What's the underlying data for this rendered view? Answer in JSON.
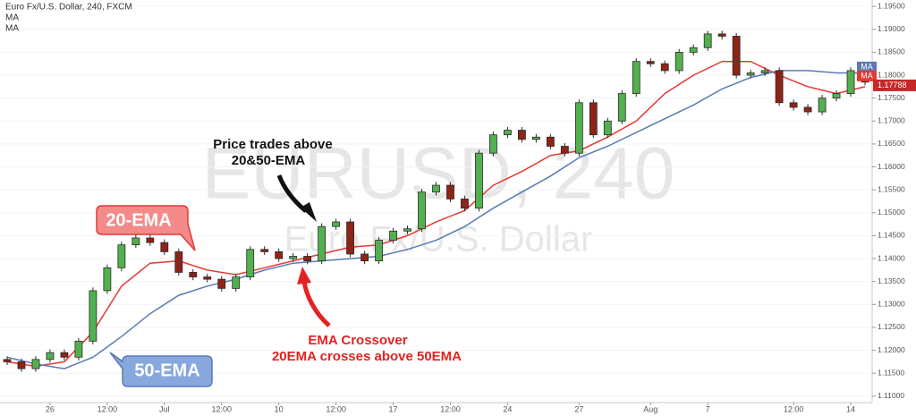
{
  "header": {
    "symbol": "Euro Fx/U.S. Dollar, 240, FXCM",
    "indicators": [
      "MA",
      "MA"
    ]
  },
  "chart_data": {
    "type": "candlestick",
    "watermark": [
      "EURUSD, 240",
      "Euro Fx/U.S. Dollar"
    ],
    "categories": [
      null,
      null,
      null,
      "26",
      null,
      null,
      null,
      "12:00",
      null,
      null,
      null,
      "Jul",
      null,
      null,
      null,
      "12:00",
      null,
      null,
      null,
      "10",
      null,
      null,
      null,
      "12:00",
      null,
      null,
      null,
      "17",
      null,
      null,
      null,
      "12:00",
      null,
      null,
      null,
      "24",
      null,
      null,
      null,
      null,
      "27",
      null,
      null,
      null,
      null,
      "Aug",
      null,
      null,
      null,
      "7",
      null,
      null,
      null,
      null,
      null,
      "12:00",
      null,
      null,
      null,
      "14",
      null
    ],
    "open": [
      1.118,
      1.1175,
      1.116,
      1.118,
      1.1195,
      1.1185,
      1.122,
      1.133,
      1.138,
      1.143,
      1.1445,
      1.1435,
      1.1415,
      1.137,
      1.136,
      1.1355,
      1.1335,
      1.136,
      1.142,
      1.1415,
      1.14,
      1.1405,
      1.1395,
      1.147,
      1.148,
      1.141,
      1.1395,
      1.144,
      1.146,
      1.1465,
      1.1545,
      1.156,
      1.153,
      1.151,
      1.163,
      1.167,
      1.168,
      1.166,
      1.1665,
      1.1645,
      1.163,
      1.174,
      1.167,
      1.17,
      1.176,
      1.183,
      1.1825,
      1.181,
      1.185,
      1.186,
      1.189,
      1.1885,
      1.18,
      1.1805,
      1.181,
      1.174,
      1.173,
      1.172,
      1.175,
      1.176,
      1.181
    ],
    "high": [
      1.1187,
      1.1182,
      1.1187,
      1.1202,
      1.1202,
      1.1227,
      1.1337,
      1.1387,
      1.1437,
      1.1452,
      1.1452,
      1.1442,
      1.1422,
      1.1377,
      1.1367,
      1.1362,
      1.1367,
      1.1427,
      1.1427,
      1.1422,
      1.1412,
      1.1412,
      1.1477,
      1.1487,
      1.1487,
      1.1417,
      1.1447,
      1.1467,
      1.1472,
      1.1552,
      1.1567,
      1.1567,
      1.1537,
      1.1637,
      1.1677,
      1.1687,
      1.1687,
      1.1672,
      1.1672,
      1.1652,
      1.1747,
      1.1747,
      1.1707,
      1.1767,
      1.1837,
      1.1837,
      1.1832,
      1.1857,
      1.1867,
      1.1897,
      1.1897,
      1.1892,
      1.1812,
      1.1817,
      1.1817,
      1.1747,
      1.1737,
      1.1757,
      1.1767,
      1.1817,
      1.1817
    ],
    "low": [
      1.1168,
      1.1153,
      1.1153,
      1.1173,
      1.1178,
      1.1178,
      1.1213,
      1.1323,
      1.1373,
      1.1423,
      1.1428,
      1.1408,
      1.1363,
      1.1353,
      1.1348,
      1.1328,
      1.1328,
      1.1353,
      1.1408,
      1.1393,
      1.1393,
      1.1388,
      1.1388,
      1.1463,
      1.1403,
      1.1388,
      1.1388,
      1.1433,
      1.1453,
      1.1458,
      1.1538,
      1.1523,
      1.1503,
      1.1503,
      1.1623,
      1.1663,
      1.1653,
      1.1653,
      1.1638,
      1.1623,
      1.1623,
      1.1663,
      1.1663,
      1.1693,
      1.1753,
      1.1818,
      1.1803,
      1.1803,
      1.1843,
      1.1853,
      1.1878,
      1.1793,
      1.1793,
      1.1798,
      1.1733,
      1.1723,
      1.1713,
      1.1713,
      1.1743,
      1.1753,
      1.1778
    ],
    "close": [
      1.1175,
      1.116,
      1.118,
      1.1195,
      1.1185,
      1.122,
      1.133,
      1.138,
      1.143,
      1.1445,
      1.1435,
      1.1415,
      1.137,
      1.136,
      1.1355,
      1.1335,
      1.136,
      1.142,
      1.1415,
      1.14,
      1.1405,
      1.1395,
      1.147,
      1.148,
      1.141,
      1.1395,
      1.144,
      1.146,
      1.1465,
      1.1545,
      1.156,
      1.153,
      1.151,
      1.163,
      1.167,
      1.168,
      1.166,
      1.1665,
      1.1645,
      1.163,
      1.174,
      1.167,
      1.17,
      1.176,
      1.183,
      1.1825,
      1.181,
      1.185,
      1.186,
      1.189,
      1.1885,
      1.18,
      1.1805,
      1.181,
      1.174,
      1.173,
      1.172,
      1.175,
      1.176,
      1.181,
      1.1785
    ],
    "up_color": "#53b04f",
    "down_color": "#8e2318",
    "series": [
      {
        "name": "20-EMA",
        "color": "#e53935",
        "x": [
          0,
          2,
          4,
          6,
          8,
          10,
          12,
          14,
          16,
          18,
          20,
          22,
          24,
          26,
          28,
          30,
          32,
          34,
          36,
          38,
          40,
          42,
          44,
          46,
          48,
          50,
          52,
          54,
          56,
          58,
          60
        ],
        "values": [
          1.1175,
          1.1165,
          1.1175,
          1.124,
          1.134,
          1.139,
          1.1395,
          1.1375,
          1.1365,
          1.138,
          1.1395,
          1.141,
          1.1425,
          1.143,
          1.145,
          1.148,
          1.1505,
          1.156,
          1.159,
          1.1625,
          1.1635,
          1.1665,
          1.17,
          1.176,
          1.18,
          1.183,
          1.183,
          1.18,
          1.1775,
          1.176,
          1.1775
        ]
      },
      {
        "name": "50-EMA",
        "color": "#5b79b5",
        "x": [
          0,
          2,
          4,
          6,
          8,
          10,
          12,
          14,
          16,
          18,
          20,
          22,
          24,
          26,
          28,
          30,
          32,
          34,
          36,
          38,
          40,
          42,
          44,
          46,
          48,
          50,
          52,
          54,
          56,
          58,
          60
        ],
        "values": [
          1.1185,
          1.117,
          1.116,
          1.1185,
          1.123,
          1.128,
          1.132,
          1.134,
          1.1355,
          1.1375,
          1.139,
          1.1395,
          1.14,
          1.1405,
          1.142,
          1.144,
          1.147,
          1.151,
          1.1545,
          1.158,
          1.162,
          1.1645,
          1.1675,
          1.1705,
          1.1735,
          1.177,
          1.1795,
          1.181,
          1.181,
          1.1805,
          1.1805
        ]
      }
    ],
    "xlim": [
      -0.5,
      60.5
    ],
    "ylim": [
      1.1086,
      1.1964
    ],
    "yticks": [
      {
        "value": 1.11,
        "label": "1.11000"
      },
      {
        "value": 1.115,
        "label": "1.11500"
      },
      {
        "value": 1.12,
        "label": "1.12000"
      },
      {
        "value": 1.125,
        "label": "1.12500"
      },
      {
        "value": 1.13,
        "label": "1.13000"
      },
      {
        "value": 1.135,
        "label": "1.13500"
      },
      {
        "value": 1.14,
        "label": "1.14000"
      },
      {
        "value": 1.145,
        "label": "1.14500"
      },
      {
        "value": 1.15,
        "label": "1.15000"
      },
      {
        "value": 1.155,
        "label": "1.15500"
      },
      {
        "value": 1.16,
        "label": "1.16000"
      },
      {
        "value": 1.165,
        "label": "1.16500"
      },
      {
        "value": 1.17,
        "label": "1.17000"
      },
      {
        "value": 1.175,
        "label": "1.17500"
      },
      {
        "value": 1.18,
        "label": "1.18000"
      },
      {
        "value": 1.185,
        "label": "1.18500"
      },
      {
        "value": 1.19,
        "label": "1.19000"
      },
      {
        "value": 1.195,
        "label": "1.19500"
      }
    ],
    "grid": true,
    "annotations": [
      {
        "text": [
          "Price trades above",
          "20&50-EMA"
        ],
        "color": "#111111"
      },
      {
        "text": [
          "EMA Crossover",
          "20EMA crosses above 50EMA"
        ],
        "color": "#e32222"
      }
    ],
    "last_price": 1.17788,
    "price_tags": [
      {
        "label": "MA",
        "color": "#5b79b5"
      },
      {
        "label": "MA",
        "color": "#e53935"
      }
    ]
  }
}
